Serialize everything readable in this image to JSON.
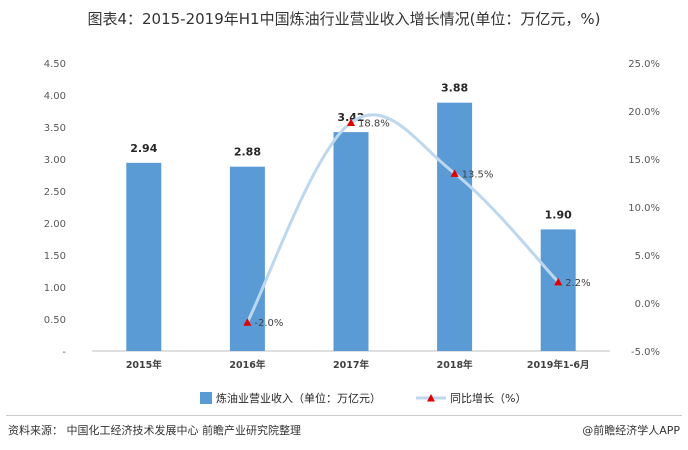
{
  "title": "图表4：2015-2019年H1中国炼油行业营业收入增长情况(单位：万亿元，%)",
  "chart_data": {
    "type": "bar+line",
    "categories": [
      "2015年",
      "2016年",
      "2017年",
      "2018年",
      "2019年1-6月"
    ],
    "series": [
      {
        "name": "炼油业营业收入（单位：万亿元）",
        "type": "bar",
        "axis": "left",
        "color": "#5b9bd5",
        "values": [
          2.94,
          2.88,
          3.42,
          3.88,
          1.9
        ],
        "labels": [
          "2.94",
          "2.88",
          "3.42",
          "3.88",
          "1.90"
        ]
      },
      {
        "name": "同比增长（%）",
        "type": "line",
        "axis": "right",
        "color": "#bdd7ee",
        "marker_color": "#e00000",
        "values": [
          null,
          -2.0,
          18.8,
          13.5,
          2.2
        ],
        "labels": [
          "",
          "-2.0%",
          "18.8%",
          "13.5%",
          "2.2%"
        ]
      }
    ],
    "y_left": {
      "min": 0,
      "max": 4.5,
      "step": 0.5,
      "ticks": [
        "-",
        "0.50",
        "1.00",
        "1.50",
        "2.00",
        "2.50",
        "3.00",
        "3.50",
        "4.00",
        "4.50"
      ]
    },
    "y_right": {
      "min": -5,
      "max": 25,
      "step": 5,
      "ticks": [
        "-5.0%",
        "0.0%",
        "5.0%",
        "10.0%",
        "15.0%",
        "20.0%",
        "25.0%"
      ]
    },
    "grid": false,
    "legend_position": "bottom"
  },
  "footer": {
    "source": "资料来源：  中国化工经济技术发展中心 前瞻产业研究院整理",
    "brand": "@前瞻经济学人APP"
  }
}
